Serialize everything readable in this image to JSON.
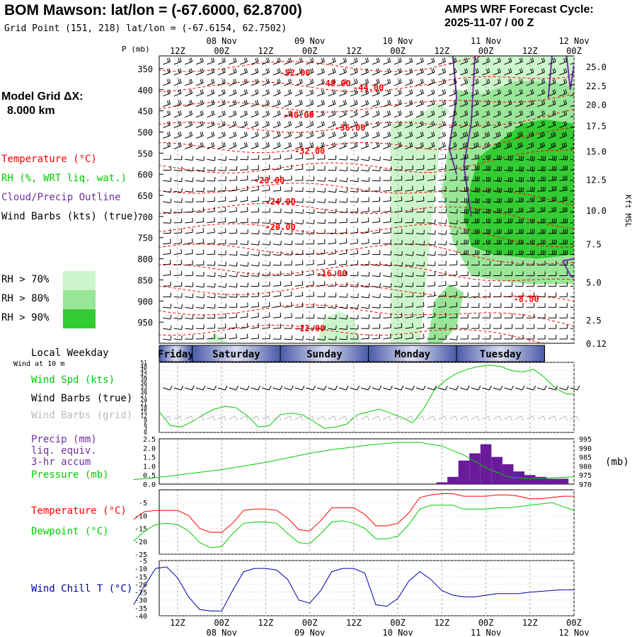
{
  "header": {
    "title": "BOM Mawson:  lat/lon = (-67.6000, 62.8700)",
    "grid_point": "Grid Point (151, 218) lat/lon = (-67.6154, 62.7502)",
    "cycle_line1": "AMPS WRF Forecast Cycle:",
    "cycle_line2": "2025-11-07 / 00  Z"
  },
  "model_grid": {
    "label": "Model Grid ΔX:",
    "value": "8.000 km"
  },
  "time_axis": {
    "hour_labels": [
      "12Z",
      "00Z",
      "12Z",
      "00Z",
      "12Z",
      "00Z",
      "12Z",
      "00Z",
      "12Z",
      "00Z"
    ],
    "date_labels": [
      "08 Nov",
      "09 Nov",
      "10 Nov",
      "11 Nov",
      "12 Nov"
    ],
    "p_unit": "P (mb)"
  },
  "cross_section_legend": {
    "temperature": "Temperature (°C)",
    "rh": "RH (%, WRT liq. wat.)",
    "cloud": "Cloud/Precip Outline",
    "wind": "Wind Barbs (kts) (true)",
    "rh_levels": [
      "RH > 70%",
      "RH > 80%",
      "RH > 90%"
    ],
    "rh_colors": [
      "#ccf5cc",
      "#99e699",
      "#33cc33"
    ],
    "height_unit": "Kft MSL"
  },
  "weekday_bar": {
    "label": "Local Weekday",
    "days": [
      "Friday",
      "Saturday",
      "Sunday",
      "Monday",
      "Tuesday"
    ]
  },
  "panel_labels": {
    "wind_at": "Wind at 10 m",
    "wind_spd": "Wind Spd (kts)",
    "wind_barbs_true": "Wind Barbs (true)",
    "wind_barbs_grid": "Wind Barbs (grid)",
    "precip1": "Precip (mm)",
    "precip2": "liq. equiv.",
    "precip3": "3-hr accum",
    "pressure": "Pressure (mb)",
    "pressure_unit": "(mb)",
    "temperature": "Temperature (°C)",
    "dewpoint": "Dewpoint (°C)",
    "wind_chill": "Wind Chill T (°C)"
  },
  "chart_data": [
    {
      "type": "contour",
      "title": "Time-pressure cross section",
      "x": [
        0,
        6,
        12,
        18,
        24,
        30,
        36,
        42,
        48,
        54,
        60,
        66,
        72,
        78,
        84,
        90,
        96,
        102,
        108,
        114,
        120
      ],
      "x_unit": "forecast hours from 2025-11-07 00Z",
      "xlim": [
        7,
        120
      ],
      "pressure_ticks": [
        350,
        400,
        450,
        500,
        550,
        600,
        650,
        700,
        750,
        800,
        850,
        900,
        950
      ],
      "ylim": [
        1000,
        320
      ],
      "height_ticks": [
        "25.0",
        "22.5",
        "20.0",
        "17.5",
        "15.0",
        "12.5",
        "10.0",
        "7.5",
        "5.0",
        "2.5",
        "0.12"
      ],
      "height_tick_pressures": [
        345,
        390,
        435,
        485,
        545,
        612,
        685,
        765,
        855,
        945,
        1000
      ],
      "temperature_labels": [
        {
          "text": "-52.00",
          "hour": 44,
          "p": 360
        },
        {
          "text": "-48.00",
          "hour": 55,
          "p": 385
        },
        {
          "text": "-44.00",
          "hour": 64,
          "p": 395
        },
        {
          "text": "-40.00",
          "hour": 45,
          "p": 460
        },
        {
          "text": "-36.00",
          "hour": 59,
          "p": 490
        },
        {
          "text": "-32.00",
          "hour": 48,
          "p": 545
        },
        {
          "text": "-28.00",
          "hour": 37,
          "p": 615
        },
        {
          "text": "-24.00",
          "hour": 40,
          "p": 665
        },
        {
          "text": "-20.00",
          "hour": 40,
          "p": 725
        },
        {
          "text": "-16.00",
          "hour": 54,
          "p": 835
        },
        {
          "text": "-12.00",
          "hour": 48,
          "p": 965
        },
        {
          "text": "-8.00",
          "hour": 107,
          "p": 895
        }
      ]
    },
    {
      "type": "line",
      "title": "Wind Spd (kts)",
      "x": [
        7,
        10,
        13,
        16,
        19,
        22,
        25,
        28,
        31,
        34,
        37,
        40,
        43,
        46,
        49,
        52,
        55,
        58,
        61,
        64,
        67,
        70,
        73,
        76,
        79,
        82,
        85,
        88,
        91,
        94,
        97,
        100,
        103,
        106,
        109,
        112,
        115,
        118,
        120
      ],
      "values": [
        15,
        5,
        4,
        8,
        13,
        17,
        19,
        18,
        12,
        4,
        5,
        13,
        14,
        13,
        8,
        3,
        4,
        6,
        13,
        15,
        17,
        14,
        11,
        7,
        17,
        31,
        38,
        43,
        46,
        48,
        49,
        48,
        45,
        44,
        46,
        40,
        32,
        28,
        28
      ],
      "yticks": [
        0,
        3,
        6,
        9,
        12,
        15,
        18,
        21,
        24,
        27,
        30,
        33,
        36,
        39,
        42,
        45,
        48,
        51
      ],
      "ylim": [
        0,
        51
      ]
    },
    {
      "type": "bar+line",
      "title": "Precip (mm) / Pressure (mb)",
      "precip_hours": [
        84,
        87,
        90,
        93,
        96,
        99,
        102,
        105,
        108,
        111,
        114,
        117
      ],
      "precip_mm": [
        0.1,
        0.4,
        1.3,
        1.7,
        2.2,
        1.5,
        1.1,
        0.7,
        0.5,
        0.4,
        0.3,
        0.3
      ],
      "precip_yticks": [
        0.0,
        0.5,
        1.0,
        1.5,
        2.0,
        2.5
      ],
      "precip_ylim": [
        0,
        2.5
      ],
      "pressure_hours": [
        0,
        6,
        12,
        18,
        24,
        30,
        36,
        42,
        48,
        54,
        60,
        66,
        72,
        78,
        84,
        90,
        96,
        102,
        108,
        114,
        120
      ],
      "pressure_mb": [
        972.5,
        973.5,
        975,
        976.5,
        978,
        980,
        982,
        984.5,
        987,
        989,
        990.5,
        992,
        993,
        993,
        991,
        986,
        979,
        974,
        973,
        973.5,
        974
      ],
      "pressure_yticks": [
        970,
        975,
        980,
        985,
        990,
        995
      ],
      "pressure_ylim": [
        970,
        995
      ]
    },
    {
      "type": "line",
      "title": "Temperature / Dewpoint (°C)",
      "x": [
        0,
        3,
        6,
        9,
        12,
        15,
        18,
        21,
        24,
        27,
        30,
        33,
        36,
        39,
        42,
        45,
        48,
        51,
        54,
        57,
        60,
        63,
        66,
        69,
        72,
        75,
        78,
        81,
        84,
        87,
        90,
        93,
        96,
        99,
        102,
        105,
        108,
        111,
        114,
        117,
        120
      ],
      "series": [
        {
          "name": "Temperature",
          "color": "#ff0000",
          "values": [
            -11.5,
            -8.5,
            -8,
            -8,
            -8,
            -10,
            -15,
            -16.5,
            -16.5,
            -13,
            -8,
            -7.5,
            -7.5,
            -8,
            -11,
            -15.5,
            -16,
            -12,
            -7,
            -7,
            -7,
            -9.5,
            -14,
            -14,
            -13,
            -9,
            -3,
            -2,
            -1.5,
            -1.5,
            -2.5,
            -2.5,
            -2.5,
            -2,
            -2,
            -2.5,
            -3.5,
            -3.5,
            -3,
            -2.5,
            -2.5
          ]
        },
        {
          "name": "Dewpoint",
          "color": "#00cc00",
          "values": [
            -20,
            -16,
            -13.5,
            -13,
            -13.5,
            -16,
            -20.5,
            -22.5,
            -22,
            -17,
            -13,
            -12.5,
            -12.5,
            -13,
            -17,
            -20.5,
            -21,
            -17,
            -12.5,
            -12,
            -13,
            -15,
            -19,
            -19,
            -18,
            -13.5,
            -7.5,
            -6,
            -6,
            -6,
            -7.5,
            -7.5,
            -7.5,
            -7,
            -7,
            -6.5,
            -6,
            -5.5,
            -5,
            -6.5,
            -8
          ]
        }
      ],
      "yticks": [
        -25,
        -20,
        -15,
        -10,
        -5
      ],
      "ylim": [
        -25,
        0
      ]
    },
    {
      "type": "line",
      "title": "Wind Chill T (°C)",
      "x": [
        0,
        3,
        6,
        9,
        12,
        15,
        18,
        21,
        24,
        27,
        30,
        33,
        36,
        39,
        42,
        45,
        48,
        51,
        54,
        57,
        60,
        63,
        66,
        69,
        72,
        75,
        78,
        81,
        84,
        87,
        90,
        93,
        96,
        99,
        102,
        105,
        108,
        111,
        114,
        117,
        120
      ],
      "values": [
        -33,
        -21,
        -10,
        -9,
        -16,
        -28,
        -36,
        -37,
        -37,
        -24,
        -12,
        -10,
        -10,
        -11,
        -17,
        -30,
        -32,
        -24,
        -12,
        -10,
        -10,
        -13,
        -33,
        -34,
        -29,
        -18,
        -12,
        -17,
        -24,
        -27,
        -28,
        -28,
        -27,
        -26,
        -26,
        -26,
        -25,
        -24.5,
        -24,
        -23.5,
        -23.5
      ],
      "yticks": [
        -40,
        -35,
        -30,
        -25,
        -20,
        -15,
        -10,
        -5
      ],
      "ylim": [
        -40,
        -5
      ]
    }
  ]
}
